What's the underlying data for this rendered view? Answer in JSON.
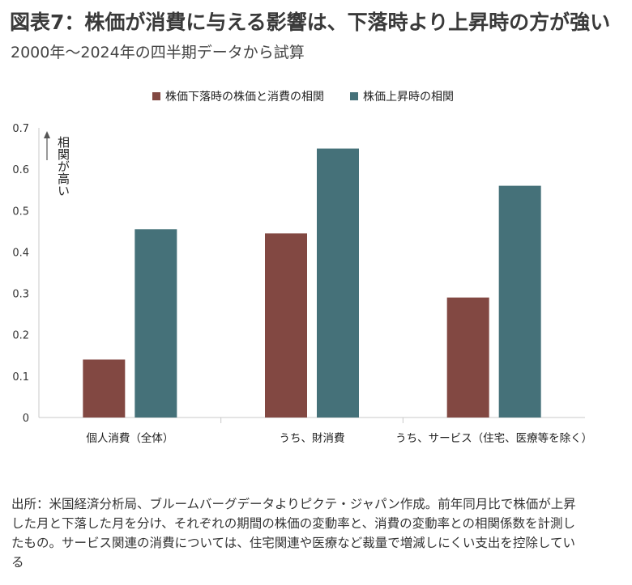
{
  "title": "図表7：株価が消費に与える影響は、下落時より上昇時の方が強い",
  "subtitle": "2000年～2024年の四半期データから試算",
  "annotation": {
    "line1": "相関",
    "line2": "が高い"
  },
  "footnote": "出所：米国経済分析局、ブルームバーグデータよりピクテ・ジャパン作成。前年同月比で株価が上昇した月と下落した月を分け、それぞれの期間の株価の変動率と、消費の変動率との相関係数を計測したもの。サービス関連の消費については、住宅関連や医療など裁量で増減しにくい支出を控除している",
  "colors": {
    "down": "#824842",
    "up": "#457179",
    "axis": "#c8c8c8"
  },
  "chart_data": {
    "type": "bar",
    "categories": [
      "個人消費（全体）",
      "うち、財消費",
      "うち、サービス（住宅、医療等を除く）"
    ],
    "series": [
      {
        "name": "株価下落時の株価と消費の相関",
        "values": [
          0.14,
          0.445,
          0.29
        ]
      },
      {
        "name": "株価上昇時の相関",
        "values": [
          0.455,
          0.65,
          0.56
        ]
      }
    ],
    "ylim": [
      0,
      0.7
    ],
    "yticks": [
      "0",
      "0.1",
      "0.2",
      "0.3",
      "0.4",
      "0.5",
      "0.6",
      "0.7"
    ],
    "legend": "top-center",
    "grid": false
  }
}
